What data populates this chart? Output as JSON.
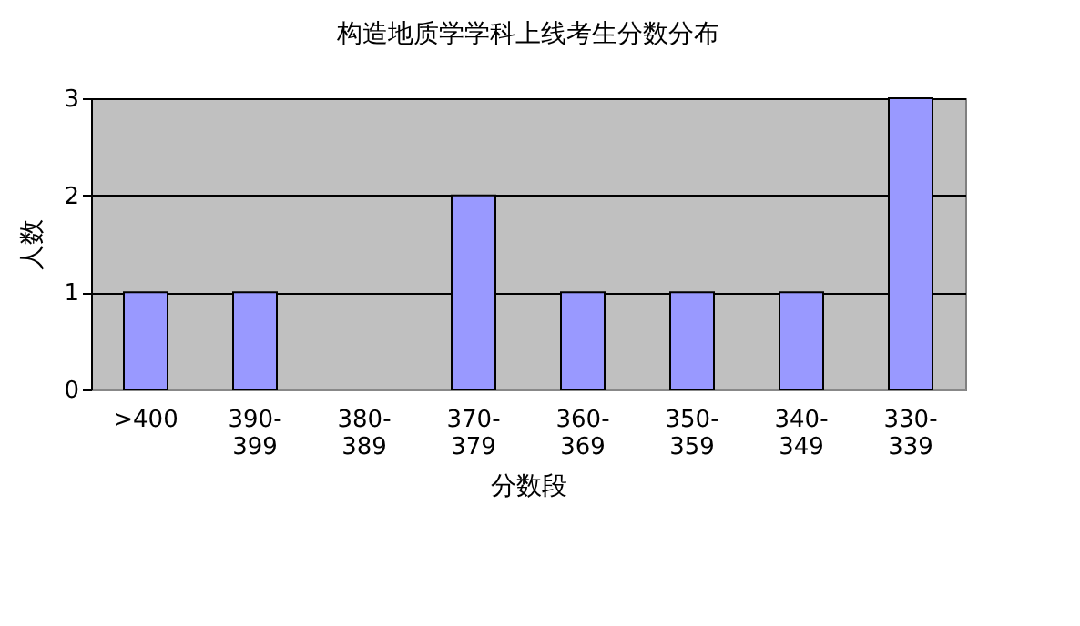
{
  "chart_data": {
    "type": "bar",
    "title": "构造地质学学科上线考生分数分布",
    "xlabel": "分数段",
    "ylabel": "人数",
    "categories": [
      ">400",
      "390-399",
      "380-389",
      "370-379",
      "360-369",
      "350-359",
      "340-349",
      "330-339"
    ],
    "values": [
      1,
      1,
      0,
      2,
      1,
      1,
      1,
      3
    ],
    "color": "#9999ff",
    "ylim": [
      0,
      3
    ],
    "yticks": [
      0,
      1,
      2,
      3
    ],
    "grid": "y"
  }
}
